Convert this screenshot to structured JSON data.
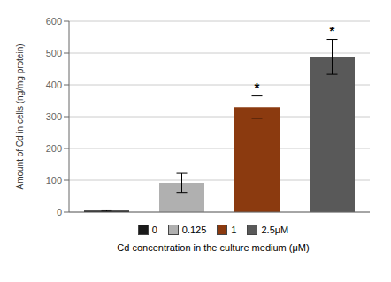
{
  "chart_data": {
    "type": "bar",
    "categories": [
      "0",
      "0.125",
      "1",
      "2.5μM"
    ],
    "values": [
      5,
      92,
      330,
      488
    ],
    "errors": [
      2,
      30,
      35,
      55
    ],
    "colors": [
      "#1a1a1a",
      "#b0b0b0",
      "#8B3A0F",
      "#595959"
    ],
    "ylabel": "Amount of Cd in cells (ng/mg protein)",
    "xlabel": "Cd concentration in the culture medium (μM)",
    "ylim": [
      0,
      600
    ],
    "yticks": [
      0,
      100,
      200,
      300,
      400,
      500,
      600
    ],
    "grid": true,
    "tick_labels": "y",
    "legend": "bottom",
    "annotations": [
      {
        "category": "1",
        "text": "*"
      },
      {
        "category": "2.5μM",
        "text": "*"
      }
    ]
  }
}
